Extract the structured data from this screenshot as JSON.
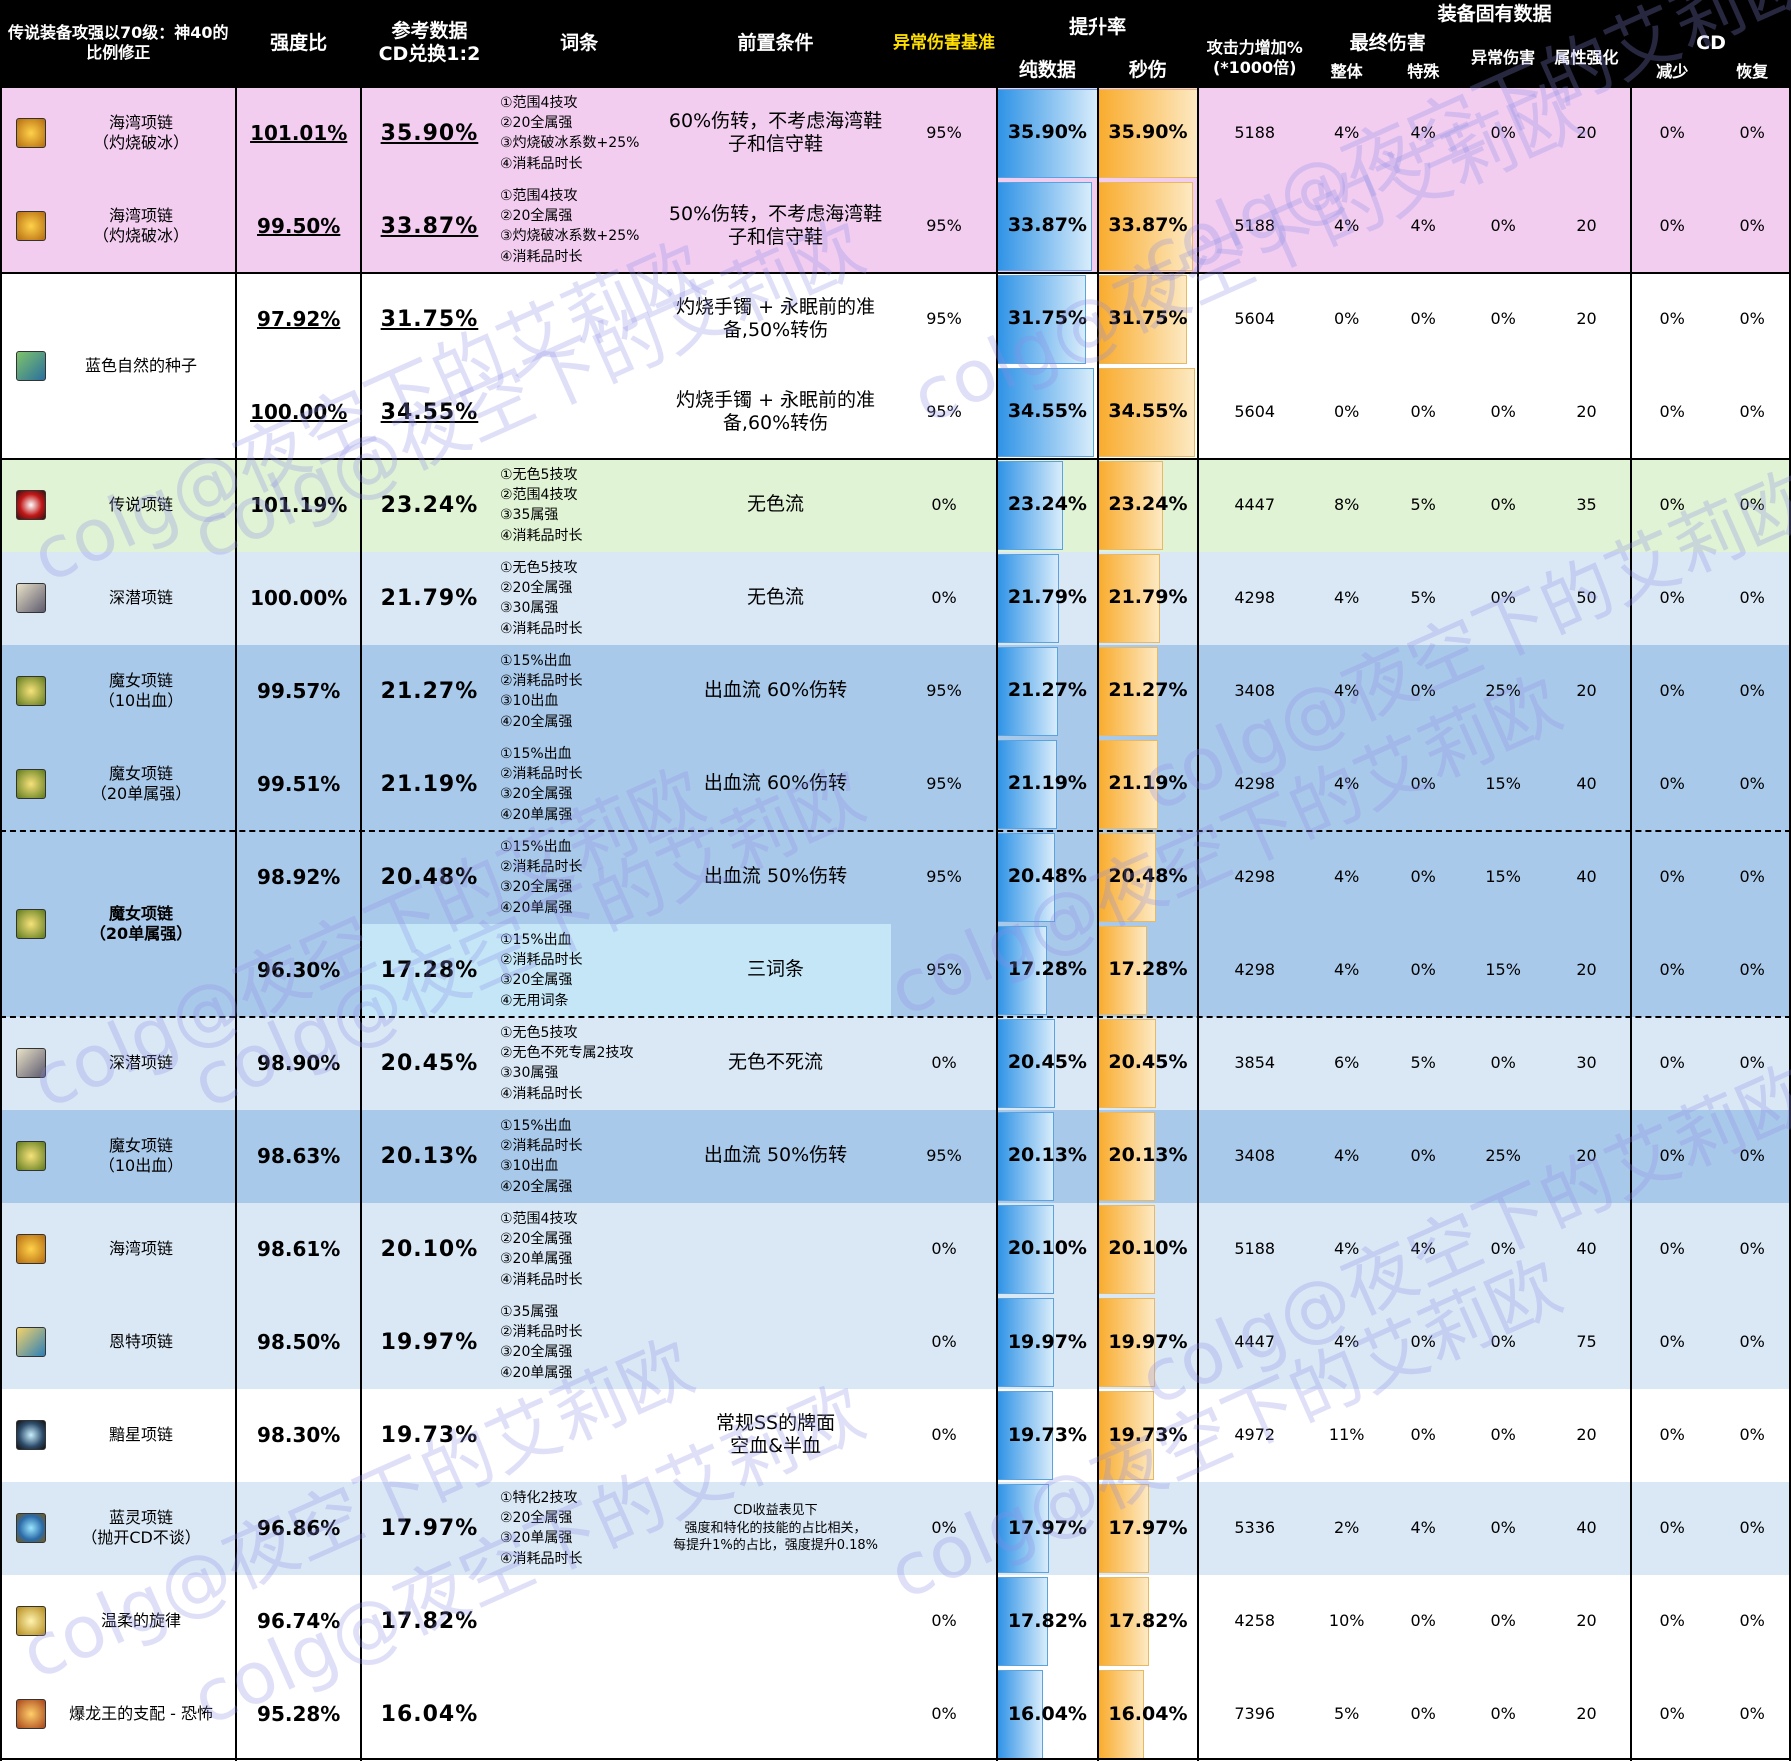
{
  "headers": {
    "h1": "传说装备攻强以70级：神40的\n比例修正",
    "h2": "强度比",
    "h3": "参考数据\nCD兑换1:2",
    "h4": "词条",
    "h5": "前置条件",
    "h6": "异常伤害基准",
    "h7": "提升率",
    "h7a": "纯数据",
    "h7b": "秒伤",
    "h8": "装备固有数据",
    "h9": "攻击力增加%\n(*1000倍)",
    "h10": "最终伤害",
    "h10a": "整体",
    "h10b": "特殊",
    "h11": "异常伤害",
    "h12": "属性强化",
    "h13": "CD",
    "h13a": "减少",
    "h13b": "恢复"
  },
  "colors": {
    "pink": "#f2cdf0",
    "white": "#ffffff",
    "green": "#e0f3d4",
    "lightblue": "#dae8f6",
    "midblue": "#a9c9ea",
    "cyan": "#c4e6f7",
    "bar_blue": "#2f93e6",
    "bar_orange": "#f9ac2e"
  },
  "groups": [
    {
      "name": "海湾项链\n（灼烧破冰）",
      "icon": "bay-necklace-icon",
      "bold": false,
      "rows": [
        0
      ]
    },
    {
      "name": "海湾项链\n（灼烧破冰）",
      "icon": "bay-necklace-icon",
      "bold": false,
      "rows": [
        1
      ]
    },
    {
      "name": "蓝色自然的种子",
      "icon": "blue-seed-icon",
      "bold": false,
      "rows": [
        2,
        3
      ]
    },
    {
      "name": "传说项链",
      "icon": "legend-necklace-icon",
      "bold": false,
      "rows": [
        4
      ]
    },
    {
      "name": "深潜项链",
      "icon": "deep-dive-necklace-icon",
      "bold": false,
      "rows": [
        5
      ]
    },
    {
      "name": "魔女项链\n（10出血）",
      "icon": "witch-necklace-icon",
      "bold": false,
      "rows": [
        6
      ]
    },
    {
      "name": "魔女项链\n（20单属强）",
      "icon": "witch-necklace-icon",
      "bold": false,
      "rows": [
        7
      ]
    },
    {
      "name": "魔女项链\n（20单属强）",
      "icon": "witch-necklace-icon",
      "bold": true,
      "rows": [
        8,
        9
      ]
    },
    {
      "name": "深潜项链",
      "icon": "deep-dive-necklace-icon",
      "bold": false,
      "rows": [
        10
      ]
    },
    {
      "name": "魔女项链\n（10出血）",
      "icon": "witch-necklace-icon",
      "bold": false,
      "rows": [
        11
      ]
    },
    {
      "name": "海湾项链",
      "icon": "bay-necklace-icon",
      "bold": false,
      "rows": [
        12
      ]
    },
    {
      "name": "恩特项链",
      "icon": "ent-necklace-icon",
      "bold": false,
      "rows": [
        13
      ]
    },
    {
      "name": "黯星项链",
      "icon": "dark-star-necklace-icon",
      "bold": false,
      "rows": [
        14
      ]
    },
    {
      "name": "蓝灵项链\n（抛开CD不谈）",
      "icon": "blue-spirit-necklace-icon",
      "bold": false,
      "rows": [
        15
      ]
    },
    {
      "name": "温柔的旋律",
      "icon": "gentle-melody-icon",
      "bold": false,
      "rows": [
        16
      ]
    },
    {
      "name": "爆龙王的支配 - 恐怖",
      "icon": "dragon-king-icon",
      "bold": false,
      "rows": [
        17
      ]
    }
  ],
  "rows": [
    {
      "bg": "pink",
      "ratio": "101.01%",
      "ratio_ul": true,
      "ref": "35.90%",
      "ref_ul": true,
      "affix": "①范围4技攻\n②20全属强\n③灼烧破冰系数+25%\n④消耗品时长",
      "cond": "60%伤转，不考虑海湾鞋\n子和信守鞋",
      "cond_small": false,
      "abn_base": "95%",
      "pure": "35.90%",
      "dps": "35.90%",
      "pct": 35.9,
      "atk": "5188",
      "fd_all": "4%",
      "fd_sp": "4%",
      "abn": "0%",
      "elem": "20",
      "cd_red": "0%",
      "cd_rec": "0%"
    },
    {
      "bg": "pink",
      "ratio": "99.50%",
      "ratio_ul": true,
      "ref": "33.87%",
      "ref_ul": true,
      "affix": "①范围4技攻\n②20全属强\n③灼烧破冰系数+25%\n④消耗品时长",
      "cond": "50%伤转，不考虑海湾鞋\n子和信守鞋",
      "cond_small": false,
      "abn_base": "95%",
      "pure": "33.87%",
      "dps": "33.87%",
      "pct": 33.87,
      "atk": "5188",
      "fd_all": "4%",
      "fd_sp": "4%",
      "abn": "0%",
      "elem": "20",
      "cd_red": "0%",
      "cd_rec": "0%"
    },
    {
      "bg": "white",
      "ratio": "97.92%",
      "ratio_ul": true,
      "ref": "31.75%",
      "ref_ul": true,
      "affix": "",
      "cond": "灼烧手镯 + 永眠前的准\n备,50%转伤",
      "cond_small": false,
      "abn_base": "95%",
      "pure": "31.75%",
      "dps": "31.75%",
      "pct": 31.75,
      "atk": "5604",
      "fd_all": "0%",
      "fd_sp": "0%",
      "abn": "0%",
      "elem": "20",
      "cd_red": "0%",
      "cd_rec": "0%"
    },
    {
      "bg": "white",
      "ratio": "100.00%",
      "ratio_ul": true,
      "ref": "34.55%",
      "ref_ul": true,
      "affix": "",
      "cond": "灼烧手镯 + 永眠前的准\n备,60%转伤",
      "cond_small": false,
      "abn_base": "95%",
      "pure": "34.55%",
      "dps": "34.55%",
      "pct": 34.55,
      "atk": "5604",
      "fd_all": "0%",
      "fd_sp": "0%",
      "abn": "0%",
      "elem": "20",
      "cd_red": "0%",
      "cd_rec": "0%"
    },
    {
      "bg": "green",
      "ratio": "101.19%",
      "ratio_ul": false,
      "ref": "23.24%",
      "ref_ul": false,
      "affix": "①无色5技攻\n②范围4技攻\n③35属强\n④消耗品时长",
      "cond": "无色流",
      "cond_small": false,
      "abn_base": "0%",
      "pure": "23.24%",
      "dps": "23.24%",
      "pct": 23.24,
      "atk": "4447",
      "fd_all": "8%",
      "fd_sp": "5%",
      "abn": "0%",
      "elem": "35",
      "cd_red": "0%",
      "cd_rec": "0%"
    },
    {
      "bg": "lightblue",
      "ratio": "100.00%",
      "ratio_ul": false,
      "ref": "21.79%",
      "ref_ul": false,
      "affix": "①无色5技攻\n②20全属强\n③30属强\n④消耗品时长",
      "cond": "无色流",
      "cond_small": false,
      "abn_base": "0%",
      "pure": "21.79%",
      "dps": "21.79%",
      "pct": 21.79,
      "atk": "4298",
      "fd_all": "4%",
      "fd_sp": "5%",
      "abn": "0%",
      "elem": "50",
      "cd_red": "0%",
      "cd_rec": "0%"
    },
    {
      "bg": "midblue",
      "ratio": "99.57%",
      "ratio_ul": false,
      "ref": "21.27%",
      "ref_ul": false,
      "affix": "①15%出血\n②消耗品时长\n③10出血\n④20全属强",
      "cond": "出血流 60%伤转",
      "cond_small": false,
      "abn_base": "95%",
      "pure": "21.27%",
      "dps": "21.27%",
      "pct": 21.27,
      "atk": "3408",
      "fd_all": "4%",
      "fd_sp": "0%",
      "abn": "25%",
      "elem": "20",
      "cd_red": "0%",
      "cd_rec": "0%"
    },
    {
      "bg": "midblue",
      "ratio": "99.51%",
      "ratio_ul": false,
      "ref": "21.19%",
      "ref_ul": false,
      "affix": "①15%出血\n②消耗品时长\n③20全属强\n④20单属强",
      "cond": "出血流 60%伤转",
      "cond_small": false,
      "abn_base": "95%",
      "pure": "21.19%",
      "dps": "21.19%",
      "pct": 21.19,
      "atk": "4298",
      "fd_all": "4%",
      "fd_sp": "0%",
      "abn": "15%",
      "elem": "40",
      "cd_red": "0%",
      "cd_rec": "0%"
    },
    {
      "bg": "midblue",
      "ratio": "98.92%",
      "ratio_ul": false,
      "ref": "20.48%",
      "ref_ul": false,
      "affix": "①15%出血\n②消耗品时长\n③20全属强\n④20单属强",
      "cond": "出血流 50%伤转",
      "cond_small": false,
      "abn_base": "95%",
      "pure": "20.48%",
      "dps": "20.48%",
      "pct": 20.48,
      "atk": "4298",
      "fd_all": "4%",
      "fd_sp": "0%",
      "abn": "15%",
      "elem": "40",
      "cd_red": "0%",
      "cd_rec": "0%"
    },
    {
      "bg": "midblue",
      "cyan": true,
      "ratio": "96.30%",
      "ratio_ul": false,
      "ref": "17.28%",
      "ref_ul": false,
      "affix": "①15%出血\n②消耗品时长\n③20全属强\n④无用词条",
      "cond": "三词条",
      "cond_small": false,
      "abn_base": "95%",
      "pure": "17.28%",
      "dps": "17.28%",
      "pct": 17.28,
      "atk": "4298",
      "fd_all": "4%",
      "fd_sp": "0%",
      "abn": "15%",
      "elem": "20",
      "cd_red": "0%",
      "cd_rec": "0%"
    },
    {
      "bg": "lightblue",
      "ratio": "98.90%",
      "ratio_ul": false,
      "ref": "20.45%",
      "ref_ul": false,
      "affix": "①无色5技攻\n②无色不死专属2技攻\n③30属强\n④消耗品时长",
      "cond": "无色不死流",
      "cond_small": false,
      "abn_base": "0%",
      "pure": "20.45%",
      "dps": "20.45%",
      "pct": 20.45,
      "atk": "3854",
      "fd_all": "6%",
      "fd_sp": "5%",
      "abn": "0%",
      "elem": "30",
      "cd_red": "0%",
      "cd_rec": "0%"
    },
    {
      "bg": "midblue",
      "ratio": "98.63%",
      "ratio_ul": false,
      "ref": "20.13%",
      "ref_ul": false,
      "affix": "①15%出血\n②消耗品时长\n③10出血\n④20全属强",
      "cond": "出血流 50%伤转",
      "cond_small": false,
      "abn_base": "95%",
      "pure": "20.13%",
      "dps": "20.13%",
      "pct": 20.13,
      "atk": "3408",
      "fd_all": "4%",
      "fd_sp": "0%",
      "abn": "25%",
      "elem": "20",
      "cd_red": "0%",
      "cd_rec": "0%"
    },
    {
      "bg": "lightblue",
      "ratio": "98.61%",
      "ratio_ul": false,
      "ref": "20.10%",
      "ref_ul": false,
      "affix": "①范围4技攻\n②20全属强\n③20单属强\n④消耗品时长",
      "cond": "",
      "cond_small": false,
      "abn_base": "0%",
      "pure": "20.10%",
      "dps": "20.10%",
      "pct": 20.1,
      "atk": "5188",
      "fd_all": "4%",
      "fd_sp": "4%",
      "abn": "0%",
      "elem": "40",
      "cd_red": "0%",
      "cd_rec": "0%"
    },
    {
      "bg": "lightblue",
      "ratio": "98.50%",
      "ratio_ul": false,
      "ref": "19.97%",
      "ref_ul": false,
      "affix": "①35属强\n②消耗品时长\n③20全属强\n④20单属强",
      "cond": "",
      "cond_small": false,
      "abn_base": "0%",
      "pure": "19.97%",
      "dps": "19.97%",
      "pct": 19.97,
      "atk": "4447",
      "fd_all": "4%",
      "fd_sp": "0%",
      "abn": "0%",
      "elem": "75",
      "cd_red": "0%",
      "cd_rec": "0%"
    },
    {
      "bg": "white",
      "ratio": "98.30%",
      "ratio_ul": false,
      "ref": "19.73%",
      "ref_ul": false,
      "affix": "",
      "cond": "常规SS的牌面\n空血&半血",
      "cond_small": false,
      "abn_base": "0%",
      "pure": "19.73%",
      "dps": "19.73%",
      "pct": 19.73,
      "atk": "4972",
      "fd_all": "11%",
      "fd_sp": "0%",
      "abn": "0%",
      "elem": "20",
      "cd_red": "0%",
      "cd_rec": "0%"
    },
    {
      "bg": "lightblue",
      "ratio": "96.86%",
      "ratio_ul": false,
      "ref": "17.97%",
      "ref_ul": false,
      "affix": "①特化2技攻\n②20全属强\n③20单属强\n④消耗品时长",
      "cond": "CD收益表见下\n强度和特化的技能的占比相关，\n每提升1%的占比，强度提升0.18%",
      "cond_small": true,
      "abn_base": "0%",
      "pure": "17.97%",
      "dps": "17.97%",
      "pct": 17.97,
      "atk": "5336",
      "fd_all": "2%",
      "fd_sp": "4%",
      "abn": "0%",
      "elem": "40",
      "cd_red": "0%",
      "cd_rec": "0%"
    },
    {
      "bg": "white",
      "ratio": "96.74%",
      "ratio_ul": false,
      "ref": "17.82%",
      "ref_ul": false,
      "affix": "",
      "cond": "",
      "cond_small": false,
      "abn_base": "0%",
      "pure": "17.82%",
      "dps": "17.82%",
      "pct": 17.82,
      "atk": "4258",
      "fd_all": "10%",
      "fd_sp": "0%",
      "abn": "0%",
      "elem": "20",
      "cd_red": "0%",
      "cd_rec": "0%"
    },
    {
      "bg": "white",
      "ratio": "95.28%",
      "ratio_ul": false,
      "ref": "16.04%",
      "ref_ul": false,
      "affix": "",
      "cond": "",
      "cond_small": false,
      "abn_base": "0%",
      "pure": "16.04%",
      "dps": "16.04%",
      "pct": 16.04,
      "atk": "7396",
      "fd_all": "5%",
      "fd_sp": "0%",
      "abn": "0%",
      "elem": "20",
      "cd_red": "0%",
      "cd_rec": "0%"
    }
  ],
  "watermark": "colg@夜空下的艾莉欧"
}
